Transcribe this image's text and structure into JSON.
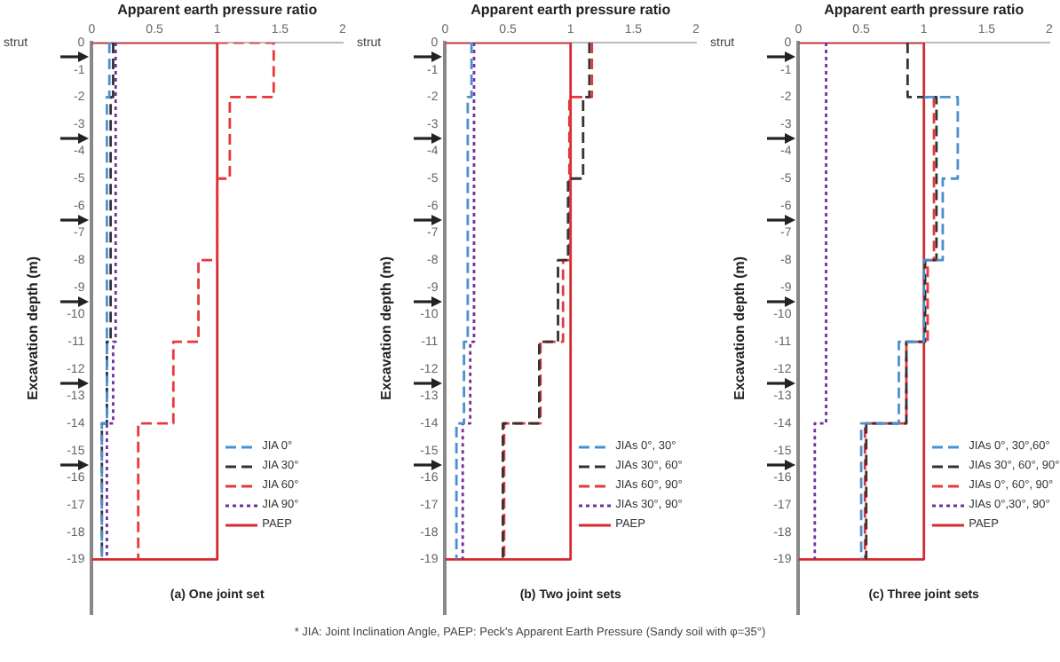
{
  "chart_data": [
    {
      "type": "line",
      "title": "(a) One joint set",
      "xlabel": "Apparent earth pressure ratio",
      "ylabel": "Excavation depth (m)",
      "xlim": [
        0,
        2
      ],
      "xticks": [
        0,
        0.5,
        1,
        1.5,
        2
      ],
      "ylim": [
        -21,
        0
      ],
      "yticks": [
        0,
        -1,
        -2,
        -3,
        -4,
        -5,
        -6,
        -7,
        -8,
        -9,
        -10,
        -11,
        -12,
        -13,
        -14,
        -15,
        -16,
        -17,
        -18,
        -19
      ],
      "grid": false,
      "legend": "bottom right",
      "marker": "none",
      "annotations": [
        "strut"
      ],
      "series": [
        {
          "name": "JIA 0°",
          "color": "#4a90d0",
          "line_style": "dashed",
          "x": [
            0.14,
            0.14,
            0.12,
            0.12,
            0.08,
            0.08
          ],
          "values": [
            0,
            -2,
            -2,
            -14,
            -14,
            -19
          ]
        },
        {
          "name": "JIA 30°",
          "color": "#333333",
          "line_style": "dashed",
          "x": [
            0.17,
            0.17,
            0.15,
            0.15,
            0.12,
            0.12,
            0.08,
            0.08
          ],
          "values": [
            0,
            -2,
            -2,
            -11,
            -11,
            -14,
            -14,
            -19
          ]
        },
        {
          "name": "JIA 60°",
          "color": "#e8383d",
          "line_style": "dashed",
          "x": [
            1,
            1.45,
            1.45,
            1.1,
            1.1,
            1,
            1,
            0.85,
            0.85,
            0.65,
            0.65,
            0.37,
            0.37
          ],
          "values": [
            0,
            0,
            -2,
            -2,
            -5,
            -5,
            -8,
            -8,
            -11,
            -11,
            -14,
            -14,
            -19
          ]
        },
        {
          "name": "JIA 90°",
          "color": "#7030a0",
          "line_style": "dotted",
          "x": [
            0.19,
            0.19,
            0.17,
            0.17,
            0.12,
            0.12
          ],
          "values": [
            0,
            -11,
            -11,
            -14,
            -14,
            -19
          ]
        },
        {
          "name": "PAEP",
          "color": "#d42a2f",
          "line_style": "solid",
          "x": [
            0,
            1,
            1,
            0
          ],
          "values": [
            0,
            0,
            -19,
            -19
          ]
        }
      ]
    },
    {
      "type": "line",
      "title": "(b) Two joint sets",
      "xlabel": "Apparent earth pressure ratio",
      "ylabel": "Excavation depth (m)",
      "xlim": [
        0,
        2
      ],
      "xticks": [
        0,
        0.5,
        1,
        1.5,
        2
      ],
      "ylim": [
        -21,
        0
      ],
      "yticks": [
        0,
        -1,
        -2,
        -3,
        -4,
        -5,
        -6,
        -7,
        -8,
        -9,
        -10,
        -11,
        -12,
        -13,
        -14,
        -15,
        -16,
        -17,
        -18,
        -19
      ],
      "grid": false,
      "legend": "bottom right",
      "marker": "none",
      "annotations": [
        "strut",
        "* JIA: Joint Inclination Angle, PAEP: Peck's Apparent Earth Pressure (Sandy soil with φ=35°)"
      ],
      "series": [
        {
          "name": "JIAs 0°, 30°",
          "color": "#4a90d0",
          "line_style": "dashed",
          "x": [
            0.21,
            0.21,
            0.18,
            0.18,
            0.15,
            0.15,
            0.09,
            0.09
          ],
          "values": [
            0,
            -2,
            -2,
            -11,
            -11,
            -14,
            -14,
            -19
          ]
        },
        {
          "name": "JIAs 30°, 60°",
          "color": "#333333",
          "line_style": "dashed",
          "x": [
            1.15,
            1.15,
            1.1,
            1.1,
            0.98,
            0.98,
            0.9,
            0.9,
            0.75,
            0.75,
            0.46,
            0.46
          ],
          "values": [
            0,
            -2,
            -2,
            -5,
            -5,
            -8,
            -8,
            -11,
            -11,
            -14,
            -14,
            -19
          ]
        },
        {
          "name": "JIAs 60°, 90°",
          "color": "#e8383d",
          "line_style": "dashed",
          "x": [
            1.17,
            1.17,
            0.99,
            0.99,
            0.94,
            0.94,
            0.76,
            0.76,
            0.47,
            0.47
          ],
          "values": [
            0,
            -2,
            -2,
            -8,
            -8,
            -11,
            -11,
            -14,
            -14,
            -19
          ]
        },
        {
          "name": "JIAs 30°, 90°",
          "color": "#7030a0",
          "line_style": "dotted",
          "x": [
            0.23,
            0.23,
            0.2,
            0.2,
            0.14,
            0.14
          ],
          "values": [
            0,
            -11,
            -11,
            -14,
            -14,
            -19
          ]
        },
        {
          "name": "PAEP",
          "color": "#d42a2f",
          "line_style": "solid",
          "x": [
            0,
            1,
            1,
            0
          ],
          "values": [
            0,
            0,
            -19,
            -19
          ]
        }
      ]
    },
    {
      "type": "line",
      "title": "(c) Three joint sets",
      "xlabel": "Apparent earth pressure ratio",
      "ylabel": "Excavation depth (m)",
      "xlim": [
        0,
        2
      ],
      "xticks": [
        0,
        0.5,
        1,
        1.5,
        2
      ],
      "ylim": [
        -21,
        0
      ],
      "yticks": [
        0,
        -1,
        -2,
        -3,
        -4,
        -5,
        -6,
        -7,
        -8,
        -9,
        -10,
        -11,
        -12,
        -13,
        -14,
        -15,
        -16,
        -17,
        -18,
        -19
      ],
      "grid": false,
      "legend": "bottom right",
      "marker": "none",
      "annotations": [
        "strut"
      ],
      "series": [
        {
          "name": "JIAs 0°, 30°,60°",
          "color": "#4a90d0",
          "line_style": "dashed",
          "x": [
            1,
            1.27,
            1.27,
            1.15,
            1.15,
            1,
            1,
            0.8,
            0.8,
            0.5,
            0.5
          ],
          "values": [
            -2,
            -2,
            -5,
            -5,
            -8,
            -8,
            -11,
            -11,
            -14,
            -14,
            -19
          ]
        },
        {
          "name": "JIAs 30°, 60°, 90°",
          "color": "#333333",
          "line_style": "dashed",
          "x": [
            0.87,
            0.87,
            1.1,
            1.1,
            1.01,
            1.01,
            0.86,
            0.86,
            0.54,
            0.54
          ],
          "values": [
            0,
            -2,
            -2,
            -8,
            -8,
            -11,
            -11,
            -14,
            -14,
            -19
          ]
        },
        {
          "name": "JIAs 0°, 60°, 90°",
          "color": "#e8383d",
          "line_style": "dashed",
          "x": [
            1.08,
            1.08,
            1.03,
            1.03,
            0.86,
            0.86,
            0.53,
            0.53
          ],
          "values": [
            -2,
            -8,
            -8,
            -11,
            -11,
            -14,
            -14,
            -19
          ]
        },
        {
          "name": "JIAs 0°,30°, 90°",
          "color": "#7030a0",
          "line_style": "dotted",
          "x": [
            0.22,
            0.22,
            0.13,
            0.13
          ],
          "values": [
            0,
            -14,
            -14,
            -19
          ]
        },
        {
          "name": "PAEP",
          "color": "#d42a2f",
          "line_style": "solid",
          "x": [
            0,
            1,
            1,
            0
          ],
          "values": [
            0,
            0,
            -19,
            -19
          ]
        }
      ]
    }
  ]
}
